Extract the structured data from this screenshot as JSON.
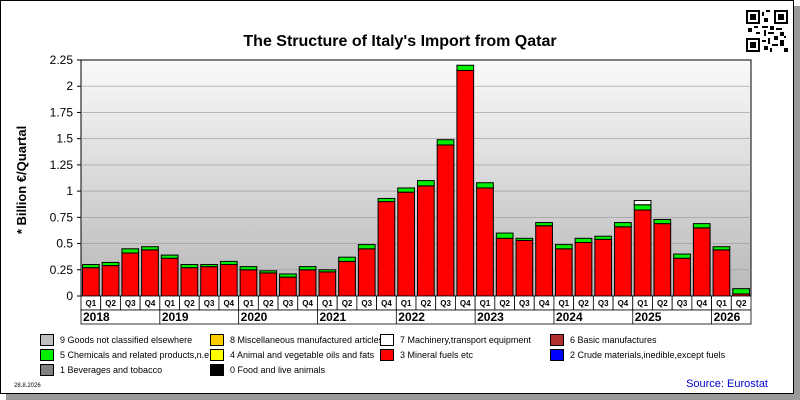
{
  "title": "The Structure of Italy's Import from Qatar",
  "source": "Source: Eurostat",
  "date": "28.8.2026",
  "chart_data": {
    "type": "bar",
    "stacked": true,
    "ylabel": "* Billion €/Quartal",
    "ylim": [
      0,
      2.25
    ],
    "yticks": [
      "0",
      "0.25",
      "0.5",
      "0.75",
      "1",
      "1.25",
      "1.5",
      "1.75",
      "2",
      "2.25"
    ],
    "grid": true,
    "legend_position": "bottom",
    "categories": [
      "Q1",
      "Q2",
      "Q3",
      "Q4",
      "Q1",
      "Q2",
      "Q3",
      "Q4",
      "Q1",
      "Q2",
      "Q3",
      "Q4",
      "Q1",
      "Q2",
      "Q3",
      "Q4",
      "Q1",
      "Q2",
      "Q3",
      "Q4",
      "Q1",
      "Q2",
      "Q3",
      "Q4",
      "Q1",
      "Q2",
      "Q3",
      "Q4",
      "Q1",
      "Q2",
      "Q3",
      "Q4",
      "Q1",
      "Q2"
    ],
    "years": [
      "2018",
      "2019",
      "2020",
      "2021",
      "2022",
      "2023",
      "2024",
      "2025",
      "2026"
    ],
    "series": [
      {
        "name": "3 Mineral fuels etc",
        "color": "#ff0000",
        "values": [
          0.27,
          0.29,
          0.41,
          0.44,
          0.36,
          0.27,
          0.28,
          0.3,
          0.25,
          0.22,
          0.18,
          0.25,
          0.23,
          0.33,
          0.45,
          0.9,
          0.99,
          1.05,
          1.44,
          2.15,
          1.03,
          0.55,
          0.53,
          0.67,
          0.45,
          0.51,
          0.54,
          0.66,
          0.82,
          0.69,
          0.36,
          0.65,
          0.44,
          0.02
        ]
      },
      {
        "name": "5 Chemicals and related products,n.e.s.",
        "color": "#00ee00",
        "values": [
          0.03,
          0.03,
          0.04,
          0.03,
          0.03,
          0.03,
          0.02,
          0.03,
          0.03,
          0.02,
          0.03,
          0.03,
          0.02,
          0.04,
          0.04,
          0.03,
          0.04,
          0.05,
          0.05,
          0.05,
          0.05,
          0.05,
          0.02,
          0.03,
          0.04,
          0.04,
          0.03,
          0.04,
          0.05,
          0.04,
          0.04,
          0.04,
          0.03,
          0.05
        ]
      },
      {
        "name": "6 Basic manufactures",
        "color": "#b03030",
        "values": [
          0,
          0,
          0,
          0,
          0,
          0,
          0,
          0,
          0,
          0,
          0,
          0,
          0,
          0,
          0,
          0,
          0,
          0,
          0,
          0,
          0,
          0,
          0,
          0,
          0,
          0,
          0,
          0,
          0,
          0,
          0,
          0,
          0,
          0
        ]
      },
      {
        "name": "7 Machinery,transport equipment",
        "color": "#ffffff",
        "values": [
          0,
          0,
          0,
          0,
          0,
          0,
          0,
          0,
          0,
          0,
          0,
          0,
          0,
          0,
          0,
          0,
          0,
          0,
          0,
          0,
          0,
          0,
          0,
          0,
          0,
          0,
          0,
          0,
          0.04,
          0,
          0,
          0,
          0,
          0
        ]
      },
      {
        "name": "8 Miscellaneous manufactured articles",
        "color": "#ffcc00",
        "values": [
          0,
          0,
          0,
          0,
          0,
          0,
          0,
          0,
          0,
          0,
          0,
          0,
          0,
          0,
          0,
          0,
          0,
          0,
          0,
          0,
          0,
          0,
          0,
          0,
          0,
          0,
          0,
          0,
          0,
          0,
          0,
          0,
          0,
          0
        ]
      },
      {
        "name": "9 Goods not classified elsewhere",
        "color": "#c0c0c0",
        "values": [
          0,
          0,
          0,
          0,
          0,
          0,
          0,
          0,
          0,
          0,
          0,
          0,
          0,
          0,
          0,
          0,
          0,
          0,
          0,
          0,
          0,
          0,
          0,
          0,
          0,
          0,
          0,
          0,
          0,
          0,
          0,
          0,
          0,
          0
        ]
      }
    ],
    "legend": [
      {
        "label": "9 Goods not classified elsewhere",
        "color": "#c0c0c0"
      },
      {
        "label": "8 Miscellaneous manufactured articles",
        "color": "#ffcc00"
      },
      {
        "label": "7 Machinery,transport equipment",
        "color": "#ffffff"
      },
      {
        "label": "6 Basic manufactures",
        "color": "#b03030"
      },
      {
        "label": "5 Chemicals and related products,n.e.s.",
        "color": "#00ee00"
      },
      {
        "label": "4 Animal and vegetable oils and fats",
        "color": "#ffff00"
      },
      {
        "label": "3 Mineral fuels etc",
        "color": "#ff0000"
      },
      {
        "label": "2 Crude materials,inedible,except fuels",
        "color": "#0000ff"
      },
      {
        "label": "1 Beverages and tobacco",
        "color": "#808080"
      },
      {
        "label": "0 Food and live animals",
        "color": "#000000"
      }
    ]
  }
}
